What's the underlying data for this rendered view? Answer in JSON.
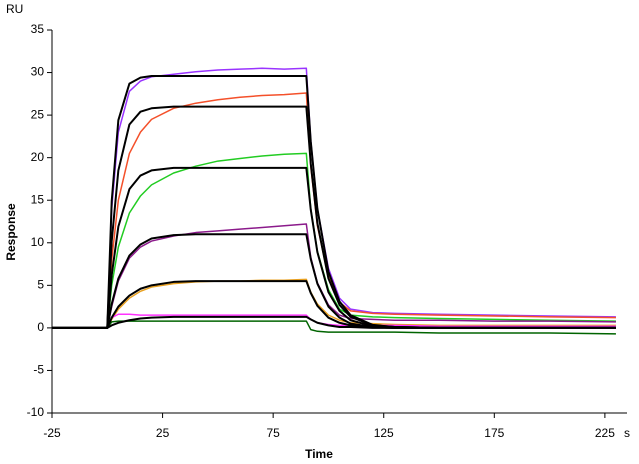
{
  "chart_data": {
    "type": "line",
    "y_axis_label": "Response",
    "y_unit": "RU",
    "x_axis_label": "Time",
    "x_unit": "s",
    "xlim": [
      -25,
      235
    ],
    "ylim": [
      -10,
      35
    ],
    "xticks": [
      -25,
      25,
      75,
      125,
      175,
      225
    ],
    "yticks": [
      -10,
      -5,
      0,
      5,
      10,
      15,
      20,
      25,
      30,
      35
    ],
    "x": [
      -25,
      -5,
      0,
      2,
      5,
      10,
      15,
      20,
      30,
      40,
      50,
      60,
      70,
      80,
      90,
      92,
      95,
      100,
      105,
      110,
      120,
      130,
      150,
      175,
      200,
      230
    ],
    "series": [
      {
        "color": "#9933ff",
        "values": [
          0,
          0,
          0,
          14,
          23,
          27.8,
          29,
          29.5,
          29.8,
          30.1,
          30.3,
          30.4,
          30.5,
          30.4,
          30.5,
          22,
          14,
          7,
          3.5,
          2.2,
          1.8,
          1.7,
          1.6,
          1.5,
          1.4,
          1.3
        ]
      },
      {
        "color": "#f4502a",
        "values": [
          0,
          0,
          0,
          8,
          15,
          20.5,
          23,
          24.5,
          25.8,
          26.4,
          26.8,
          27.1,
          27.3,
          27.4,
          27.6,
          19,
          12,
          6,
          3,
          2,
          1.7,
          1.6,
          1.5,
          1.4,
          1.3,
          1.2
        ]
      },
      {
        "color": "#22cc22",
        "values": [
          0,
          0,
          0,
          5,
          9.5,
          13.5,
          15.5,
          16.8,
          18.2,
          19,
          19.6,
          19.9,
          20.2,
          20.4,
          20.5,
          14,
          9,
          4.5,
          2.2,
          1.5,
          1.3,
          1.2,
          1.1,
          1.0,
          0.9,
          0.8
        ]
      },
      {
        "color": "#8b1a8b",
        "values": [
          0,
          0,
          0,
          2.5,
          5.5,
          8.2,
          9.5,
          10.2,
          10.8,
          11.2,
          11.4,
          11.6,
          11.8,
          12.0,
          12.2,
          8.3,
          5.3,
          2.7,
          1.5,
          1.1,
          1,
          0.9,
          0.9,
          0.8,
          0.8,
          0.7
        ]
      },
      {
        "color": "#e8a020",
        "values": [
          0,
          0,
          0,
          1.0,
          2.2,
          3.5,
          4.3,
          4.8,
          5.2,
          5.4,
          5.5,
          5.5,
          5.6,
          5.6,
          5.7,
          4.2,
          2.8,
          1.5,
          0.9,
          0.6,
          0.5,
          0.4,
          0.3,
          0.3,
          0.3,
          0.3
        ]
      },
      {
        "color": "#ff33ff",
        "values": [
          0,
          0,
          0,
          1.2,
          1.6,
          1.6,
          1.5,
          1.5,
          1.5,
          1.5,
          1.5,
          1.5,
          1.5,
          1.5,
          1.5,
          1.0,
          0.6,
          0.4,
          0.3,
          0.3,
          0.3,
          0.3,
          0.2,
          0.2,
          0.2,
          0.2
        ]
      },
      {
        "color": "#006400",
        "values": [
          0,
          0,
          0,
          0.7,
          0.8,
          0.8,
          0.8,
          0.8,
          0.8,
          0.8,
          0.8,
          0.8,
          0.8,
          0.8,
          0.8,
          -0.2,
          -0.4,
          -0.5,
          -0.5,
          -0.5,
          -0.5,
          -0.5,
          -0.6,
          -0.6,
          -0.6,
          -0.7
        ]
      },
      {
        "color": "#000000",
        "values": [
          0,
          0,
          0,
          14.9,
          24.4,
          28.7,
          29.4,
          29.6,
          29.6,
          29.6,
          29.6,
          29.6,
          29.6,
          29.6,
          29.6,
          21.9,
          14.0,
          6.6,
          3.1,
          1.5,
          0.35,
          0.1,
          0,
          0,
          0,
          0
        ]
      },
      {
        "color": "#000000",
        "values": [
          0,
          0,
          0,
          10.2,
          18.5,
          23.9,
          25.4,
          25.8,
          26,
          26,
          26,
          26,
          26,
          26,
          26,
          19.3,
          12.3,
          5.8,
          2.7,
          1.3,
          0.3,
          0.1,
          0,
          0,
          0,
          0
        ]
      },
      {
        "color": "#000000",
        "values": [
          0,
          0,
          0,
          6.2,
          11.9,
          16.3,
          17.9,
          18.5,
          18.8,
          18.8,
          18.8,
          18.8,
          18.8,
          18.8,
          18.8,
          13.9,
          8.9,
          4.2,
          2.0,
          0.9,
          0.2,
          0.1,
          0,
          0,
          0,
          0
        ]
      },
      {
        "color": "#000000",
        "values": [
          0,
          0,
          0,
          2.8,
          5.8,
          8.5,
          9.8,
          10.5,
          10.9,
          11,
          11,
          11,
          11,
          11,
          11,
          8.1,
          5.2,
          2.5,
          1.2,
          0.5,
          0.1,
          0,
          0,
          0,
          0,
          0
        ]
      },
      {
        "color": "#000000",
        "values": [
          0,
          0,
          0,
          1.2,
          2.5,
          3.8,
          4.6,
          5.0,
          5.4,
          5.5,
          5.5,
          5.5,
          5.5,
          5.5,
          5.5,
          4.1,
          2.6,
          1.2,
          0.6,
          0.3,
          0.1,
          0,
          0,
          0,
          0,
          0
        ]
      },
      {
        "color": "#000000",
        "values": [
          0,
          0,
          0,
          0.3,
          0.6,
          0.9,
          1.1,
          1.2,
          1.3,
          1.3,
          1.3,
          1.3,
          1.3,
          1.3,
          1.3,
          1.0,
          0.6,
          0.3,
          0.1,
          0.1,
          0,
          0,
          0,
          0,
          0,
          0
        ]
      }
    ]
  }
}
